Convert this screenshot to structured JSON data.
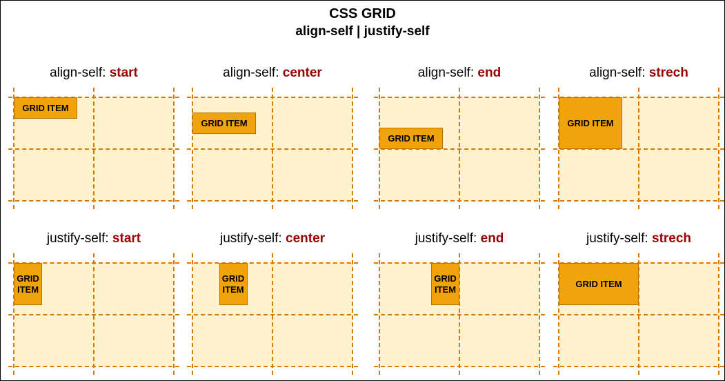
{
  "title": "CSS GRID",
  "subtitle": "align-self | justify-self",
  "colors": {
    "cell_fill": "#fff2cc",
    "grid_line": "#d97a00",
    "item_fill": "#f0a30a",
    "item_border": "#bd7000",
    "value_text": "#990000",
    "property_text": "#000000"
  },
  "item_label": "GRID ITEM",
  "item_label_wrapped": [
    "GRID",
    "ITEM"
  ],
  "panels": [
    {
      "property": "align-self:",
      "value": "start"
    },
    {
      "property": "align-self:",
      "value": "center"
    },
    {
      "property": "align-self:",
      "value": "end"
    },
    {
      "property": "align-self:",
      "value": "strech"
    },
    {
      "property": "justify-self:",
      "value": "start"
    },
    {
      "property": "justify-self:",
      "value": "center"
    },
    {
      "property": "justify-self:",
      "value": "end"
    },
    {
      "property": "justify-self:",
      "value": "strech"
    }
  ]
}
